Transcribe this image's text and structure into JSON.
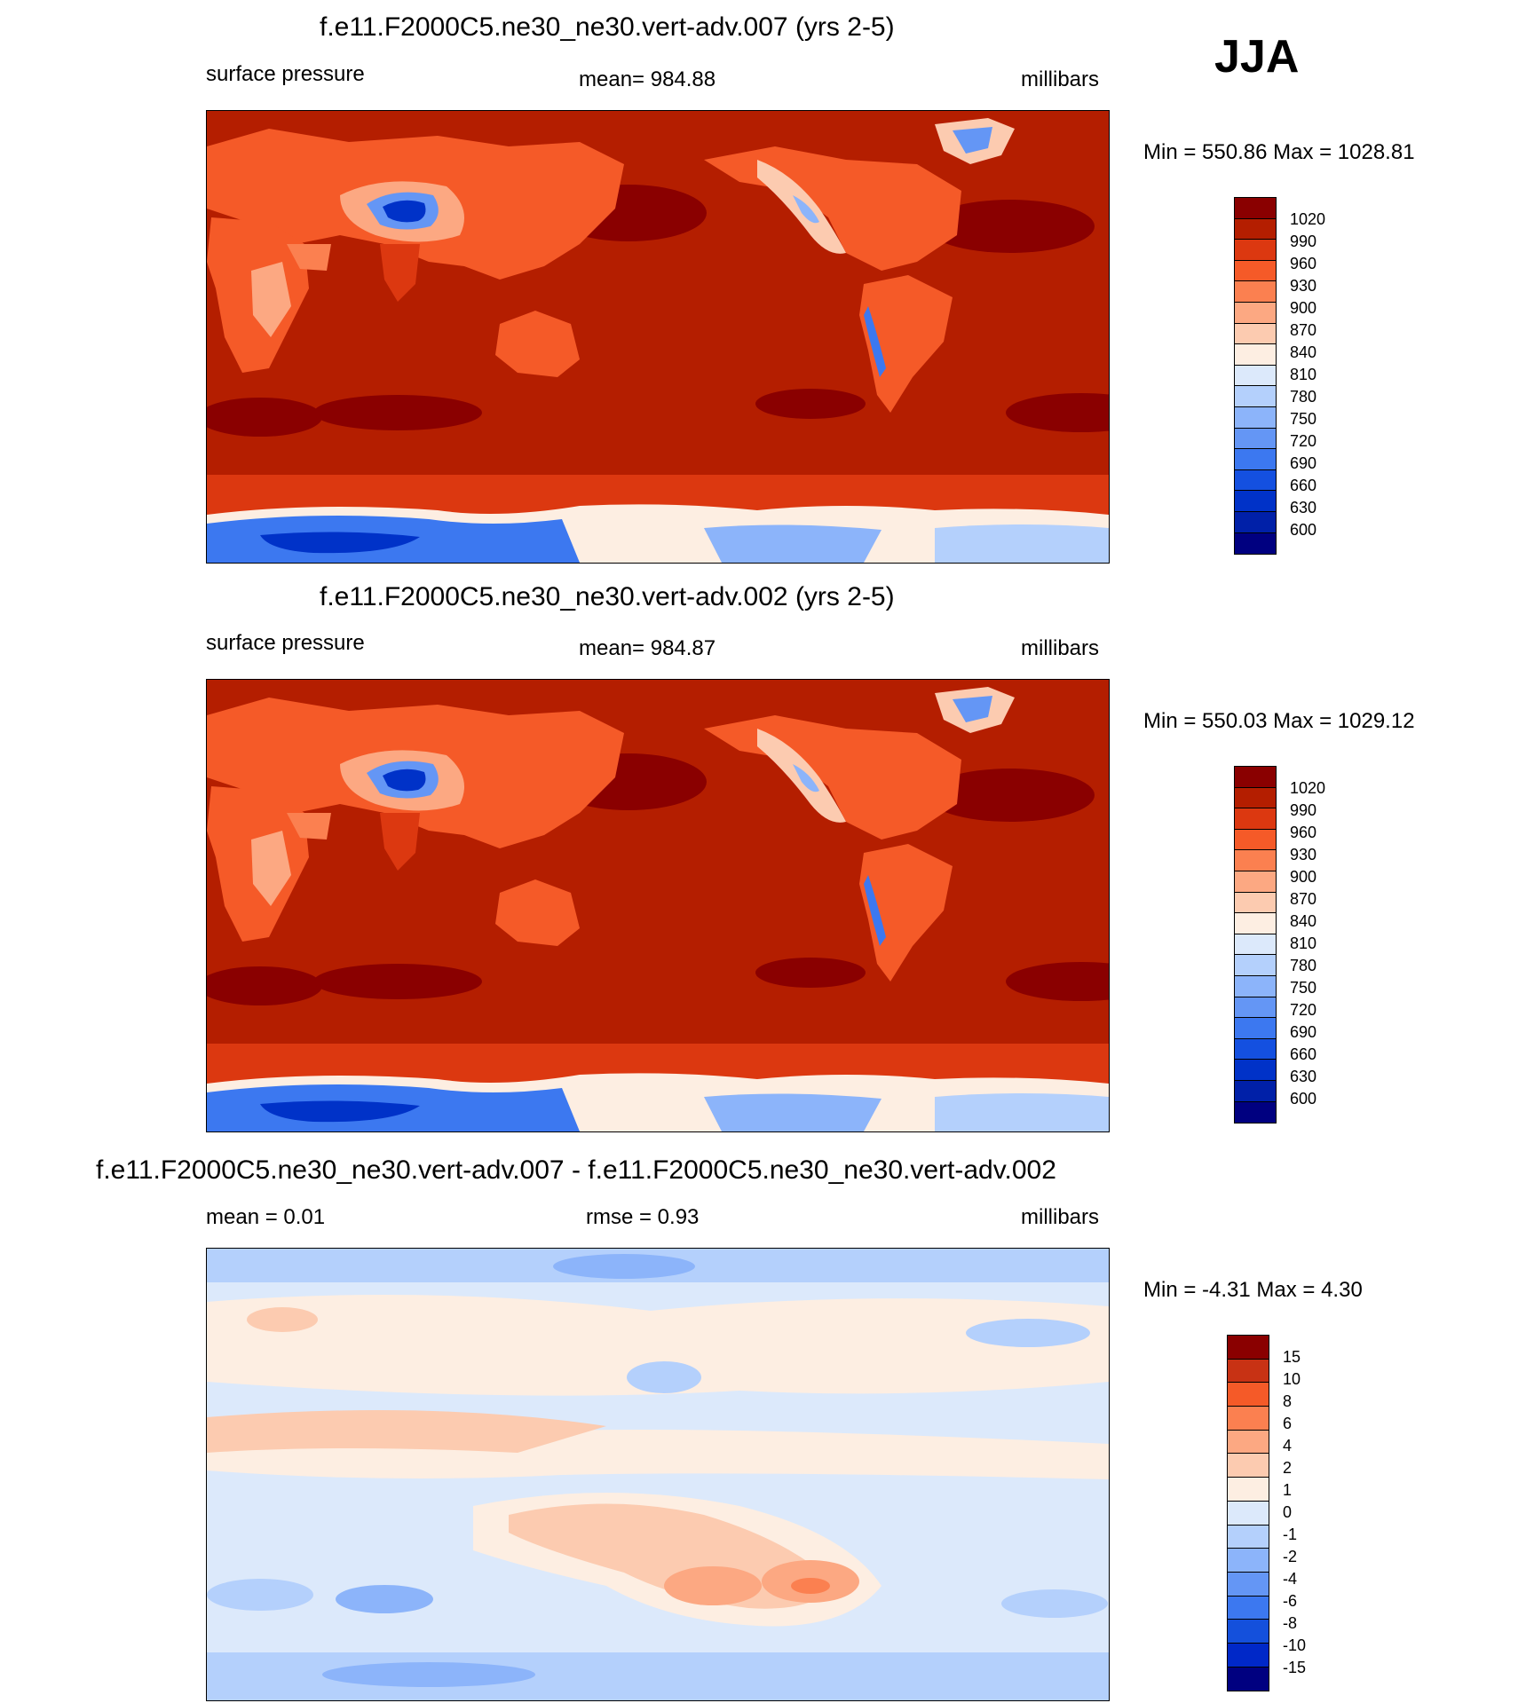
{
  "season_label": "JJA",
  "colors": {
    "abs_scale": [
      "#000080",
      "#0020a8",
      "#0032c8",
      "#1450e0",
      "#3c78f0",
      "#6496f5",
      "#8cb4fa",
      "#b4d0fc",
      "#dce9fb",
      "#fdeee2",
      "#fccbb0",
      "#fca882",
      "#fb8050",
      "#f55a28",
      "#dc3810",
      "#b41e00",
      "#8a0000"
    ],
    "diff_scale": [
      "#000080",
      "#0028c8",
      "#1450dc",
      "#3c78f0",
      "#6496f5",
      "#8cb4fa",
      "#b4d0fc",
      "#dce9fb",
      "#fdeee2",
      "#fccbb0",
      "#fca882",
      "#fb8050",
      "#f55a28",
      "#c83214",
      "#8a0000"
    ]
  },
  "panels": [
    {
      "title": "f.e11.F2000C5.ne30_ne30.vert-adv.007 (yrs 2-5)",
      "left_label": "surface pressure",
      "center_label": "mean= 984.88",
      "right_label": "millibars",
      "minmax": "Min = 550.86 Max = 1028.81",
      "colorbar_labels": [
        "1020",
        "990",
        "960",
        "930",
        "900",
        "870",
        "840",
        "810",
        "780",
        "750",
        "720",
        "690",
        "660",
        "630",
        "600"
      ]
    },
    {
      "title": "f.e11.F2000C5.ne30_ne30.vert-adv.002 (yrs 2-5)",
      "left_label": "surface pressure",
      "center_label": "mean= 984.87",
      "right_label": "millibars",
      "minmax": "Min = 550.03 Max = 1029.12",
      "colorbar_labels": [
        "1020",
        "990",
        "960",
        "930",
        "900",
        "870",
        "840",
        "810",
        "780",
        "750",
        "720",
        "690",
        "660",
        "630",
        "600"
      ]
    },
    {
      "title": "f.e11.F2000C5.ne30_ne30.vert-adv.007 - f.e11.F2000C5.ne30_ne30.vert-adv.002",
      "left_label": "mean =   0.01",
      "center_label": "rmse =   0.93",
      "right_label": "millibars",
      "minmax": "Min =  -4.31 Max =   4.30",
      "colorbar_labels": [
        "15",
        "10",
        "8",
        "6",
        "4",
        "2",
        "1",
        "0",
        "-1",
        "-2",
        "-4",
        "-6",
        "-8",
        "-10",
        "-15"
      ]
    }
  ],
  "chart_data": [
    {
      "type": "heatmap",
      "title": "f.e11.F2000C5.ne30_ne30.vert-adv.007 (yrs 2-5)",
      "variable": "surface pressure",
      "units": "millibars",
      "mean": 984.88,
      "min": 550.86,
      "max": 1028.81,
      "contour_levels": [
        600,
        630,
        660,
        690,
        720,
        750,
        780,
        810,
        840,
        870,
        900,
        930,
        960,
        990,
        1020
      ]
    },
    {
      "type": "heatmap",
      "title": "f.e11.F2000C5.ne30_ne30.vert-adv.002 (yrs 2-5)",
      "variable": "surface pressure",
      "units": "millibars",
      "mean": 984.87,
      "min": 550.03,
      "max": 1029.12,
      "contour_levels": [
        600,
        630,
        660,
        690,
        720,
        750,
        780,
        810,
        840,
        870,
        900,
        930,
        960,
        990,
        1020
      ]
    },
    {
      "type": "heatmap",
      "title": "f.e11.F2000C5.ne30_ne30.vert-adv.007 - f.e11.F2000C5.ne30_ne30.vert-adv.002",
      "units": "millibars",
      "mean": 0.01,
      "rmse": 0.93,
      "min": -4.31,
      "max": 4.3,
      "contour_levels": [
        -15,
        -10,
        -8,
        -6,
        -4,
        -2,
        -1,
        0,
        1,
        2,
        4,
        6,
        8,
        10,
        15
      ]
    }
  ]
}
